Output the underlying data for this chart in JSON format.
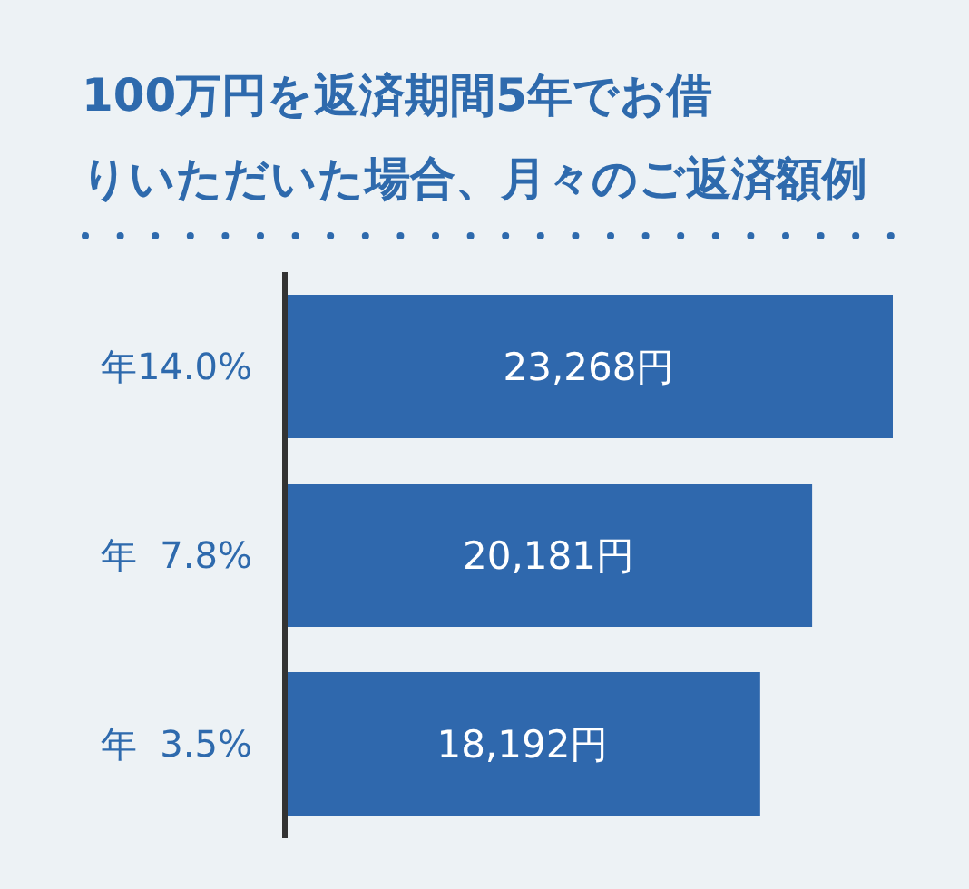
{
  "chart_data": {
    "type": "bar",
    "orientation": "horizontal",
    "title": "100万円を返済期間5年でお借りいただいた場合、月々のご返済額例",
    "categories": [
      "年14.0%",
      "年  7.8%",
      "年  3.5%"
    ],
    "values": [
      23268,
      20181,
      18192
    ],
    "value_labels": [
      "23,268円",
      "20,181円",
      "18,192円"
    ],
    "color": "#2f68ad",
    "grid": false,
    "legend": false
  }
}
